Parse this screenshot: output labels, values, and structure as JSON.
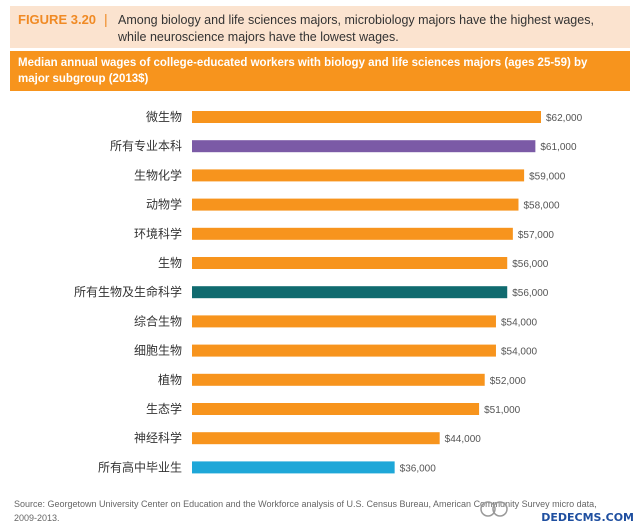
{
  "figure": {
    "label": "FIGURE 3.20",
    "separator": "|",
    "title": "Among biology and life sciences majors, microbiology majors have the highest wages, while neuroscience majors have the lowest wages."
  },
  "subtitle": "Median annual wages of college-educated workers with biology and life sciences majors  (ages 25-59) by major subgroup (2013$)",
  "source": "Source: Georgetown University Center on Education and the Workforce analysis of U.S. Census Bureau, American Community Survey micro data, 2009-2013.",
  "watermark": {
    "text": "DEDECMS.COM"
  },
  "colors": {
    "default_bar": "#f7941d",
    "highlight_all_majors": "#7b5aa6",
    "highlight_all_bio": "#106b6f",
    "highlight_hs": "#1ea7d8",
    "header_bg": "#fbe3cf",
    "band_bg": "#f7941d"
  },
  "chart_data": {
    "type": "bar",
    "orientation": "horizontal",
    "categories": [
      "微生物",
      "所有专业本科",
      "生物化学",
      "动物学",
      "环境科学",
      "生物",
      "所有生物及生命科学",
      "综合生物",
      "细胞生物",
      "植物",
      "生态学",
      "神经科学",
      "所有高中毕业生"
    ],
    "values": [
      62000,
      61000,
      59000,
      58000,
      57000,
      56000,
      56000,
      54000,
      54000,
      52000,
      51000,
      44000,
      36000
    ],
    "value_labels": [
      "$62,000",
      "$61,000",
      "$59,000",
      "$58,000",
      "$57,000",
      "$56,000",
      "$56,000",
      "$54,000",
      "$54,000",
      "$52,000",
      "$51,000",
      "$44,000",
      "$36,000"
    ],
    "bar_colors": [
      "#f7941d",
      "#7b5aa6",
      "#f7941d",
      "#f7941d",
      "#f7941d",
      "#f7941d",
      "#106b6f",
      "#f7941d",
      "#f7941d",
      "#f7941d",
      "#f7941d",
      "#f7941d",
      "#1ea7d8"
    ],
    "xlim": [
      0,
      62000
    ],
    "grid": false
  }
}
